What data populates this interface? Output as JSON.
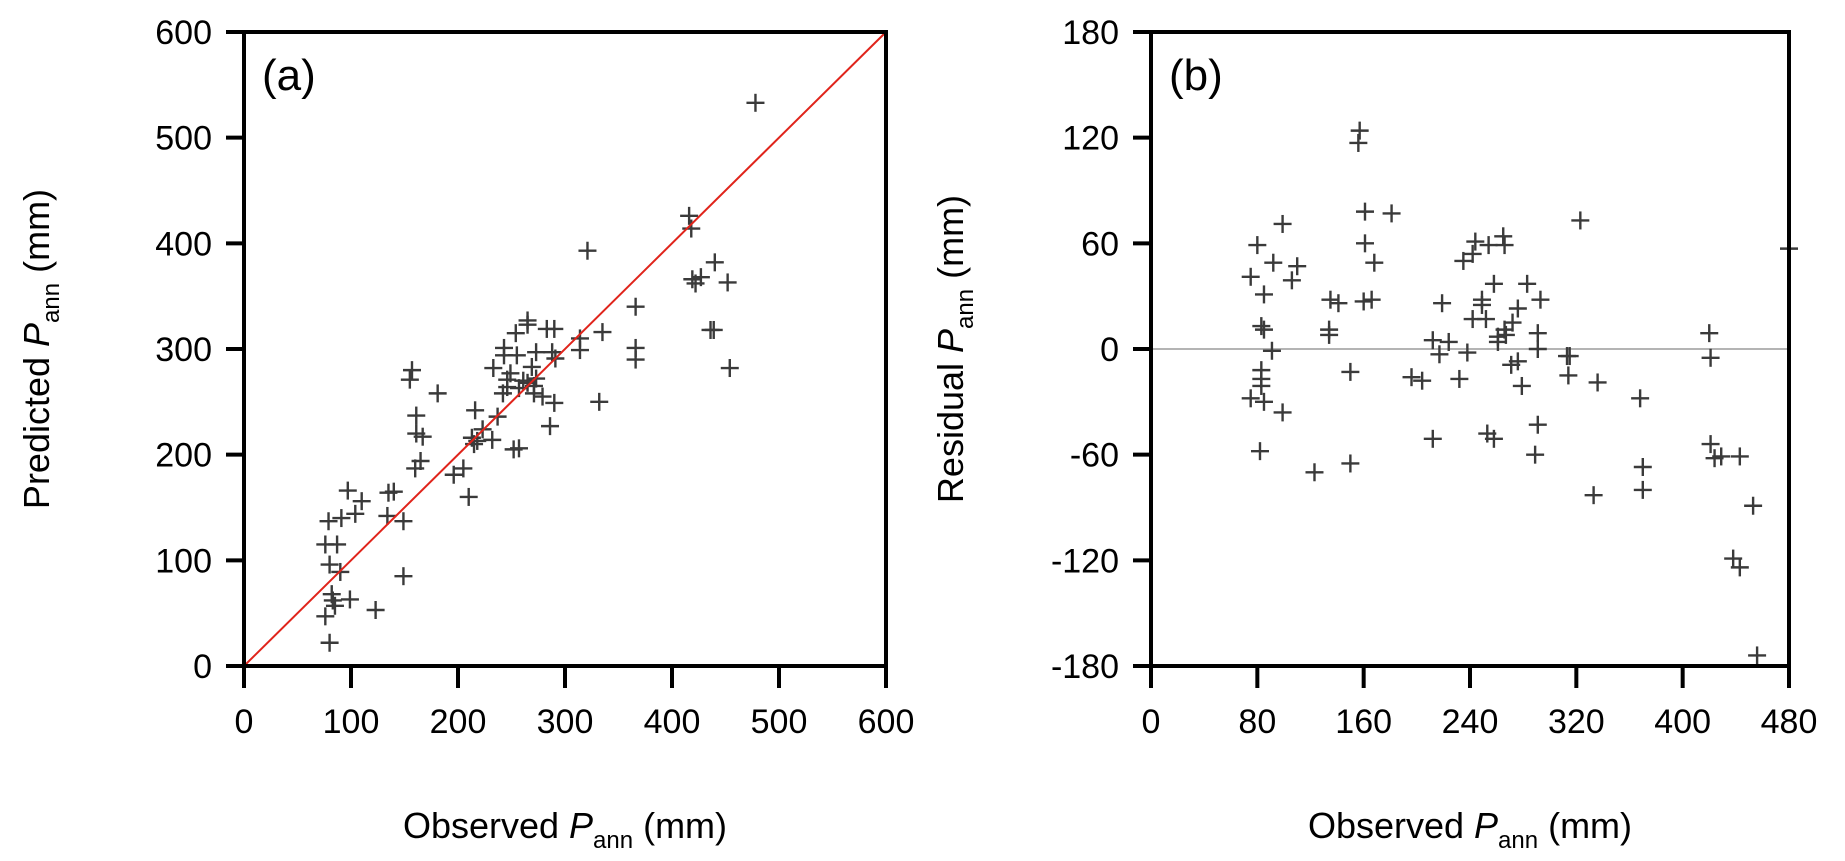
{
  "chart_data": [
    {
      "type": "scatter",
      "panel_label": "(a)",
      "title": "",
      "xlabel": {
        "prefix": "Observed ",
        "var": "P",
        "sub": "ann",
        "suffix": " (mm)"
      },
      "ylabel": {
        "prefix": "Predicted ",
        "var": "P",
        "sub": "ann",
        "suffix": " (mm)"
      },
      "xlim": [
        0,
        600
      ],
      "ylim": [
        0,
        600
      ],
      "xticks": [
        "0",
        "100",
        "200",
        "300",
        "400",
        "500",
        "600"
      ],
      "yticks": [
        "0",
        "100",
        "200",
        "300",
        "400",
        "500",
        "600"
      ],
      "xtick_values": [
        0,
        100,
        200,
        300,
        400,
        500,
        600
      ],
      "ytick_values": [
        0,
        100,
        200,
        300,
        400,
        500,
        600
      ],
      "grid": false,
      "marker": "+",
      "marker_color": "#3a3a3a",
      "reference_line": {
        "type": "1:1",
        "from": [
          0,
          0
        ],
        "to": [
          600,
          600
        ],
        "color": "#e0241b"
      },
      "points": [
        [
          80,
          22
        ],
        [
          76,
          47
        ],
        [
          85,
          57
        ],
        [
          82,
          68
        ],
        [
          83,
          62
        ],
        [
          99,
          63
        ],
        [
          123,
          53
        ],
        [
          149,
          85
        ],
        [
          80,
          96
        ],
        [
          90,
          89
        ],
        [
          76,
          115
        ],
        [
          87,
          115
        ],
        [
          79,
          137
        ],
        [
          91,
          140
        ],
        [
          104,
          144
        ],
        [
          110,
          156
        ],
        [
          97,
          166
        ],
        [
          134,
          142
        ],
        [
          149,
          137
        ],
        [
          135,
          164
        ],
        [
          140,
          165
        ],
        [
          165,
          194
        ],
        [
          160,
          187
        ],
        [
          196,
          181
        ],
        [
          205,
          187
        ],
        [
          210,
          160
        ],
        [
          215,
          210
        ],
        [
          157,
          280
        ],
        [
          155,
          271
        ],
        [
          181,
          258
        ],
        [
          161,
          237
        ],
        [
          161,
          220
        ],
        [
          167,
          217
        ],
        [
          216,
          242
        ],
        [
          237,
          236
        ],
        [
          223,
          224
        ],
        [
          213,
          216
        ],
        [
          218,
          213
        ],
        [
          232,
          214
        ],
        [
          252,
          205
        ],
        [
          257,
          206
        ],
        [
          233,
          282
        ],
        [
          243,
          301
        ],
        [
          243,
          294
        ],
        [
          255,
          294
        ],
        [
          254,
          315
        ],
        [
          265,
          327
        ],
        [
          265,
          323
        ],
        [
          283,
          319
        ],
        [
          290,
          319
        ],
        [
          273,
          297
        ],
        [
          288,
          297
        ],
        [
          291,
          291
        ],
        [
          249,
          277
        ],
        [
          246,
          271
        ],
        [
          269,
          283
        ],
        [
          261,
          270
        ],
        [
          265,
          268
        ],
        [
          271,
          265
        ],
        [
          273,
          272
        ],
        [
          246,
          264
        ],
        [
          242,
          258
        ],
        [
          257,
          263
        ],
        [
          271,
          258
        ],
        [
          279,
          255
        ],
        [
          290,
          249
        ],
        [
          286,
          227
        ],
        [
          314,
          310
        ],
        [
          314,
          299
        ],
        [
          335,
          316
        ],
        [
          332,
          250
        ],
        [
          366,
          340
        ],
        [
          366,
          301
        ],
        [
          366,
          290
        ],
        [
          321,
          393
        ],
        [
          416,
          426
        ],
        [
          418,
          414
        ],
        [
          440,
          382
        ],
        [
          419,
          366
        ],
        [
          427,
          368
        ],
        [
          422,
          362
        ],
        [
          452,
          363
        ],
        [
          436,
          318
        ],
        [
          439,
          318
        ],
        [
          454,
          282
        ],
        [
          478,
          533
        ]
      ]
    },
    {
      "type": "scatter",
      "panel_label": "(b)",
      "title": "",
      "xlabel": {
        "prefix": "Observed ",
        "var": "P",
        "sub": "ann",
        "suffix": " (mm)"
      },
      "ylabel": {
        "prefix": "Residual ",
        "var": "P",
        "sub": "ann",
        "suffix": " (mm)"
      },
      "xlim": [
        0,
        480
      ],
      "ylim": [
        -180,
        180
      ],
      "xticks": [
        "0",
        "80",
        "160",
        "240",
        "320",
        "400",
        "480"
      ],
      "yticks": [
        "-180",
        "-120",
        "-60",
        "0",
        "60",
        "120",
        "180"
      ],
      "xtick_values": [
        0,
        80,
        160,
        240,
        320,
        400,
        480
      ],
      "ytick_values": [
        -180,
        -120,
        -60,
        0,
        60,
        120,
        180
      ],
      "grid": false,
      "marker": "+",
      "marker_color": "#3a3a3a",
      "reference_line": {
        "type": "horizontal",
        "y": 0,
        "color": "#b4b4b4"
      },
      "points": [
        [
          157,
          124
        ],
        [
          156,
          117
        ],
        [
          161,
          78
        ],
        [
          181,
          77
        ],
        [
          161,
          60
        ],
        [
          168,
          49
        ],
        [
          135,
          28
        ],
        [
          141,
          26
        ],
        [
          160,
          27
        ],
        [
          166,
          28
        ],
        [
          99,
          71
        ],
        [
          80,
          59
        ],
        [
          92,
          49
        ],
        [
          110,
          47
        ],
        [
          75,
          41
        ],
        [
          106,
          39
        ],
        [
          85,
          31
        ],
        [
          83,
          13
        ],
        [
          85,
          11
        ],
        [
          134,
          11
        ],
        [
          134,
          8
        ],
        [
          91,
          -1
        ],
        [
          83,
          -12
        ],
        [
          83,
          -17
        ],
        [
          83,
          -21
        ],
        [
          75,
          -28
        ],
        [
          85,
          -30
        ],
        [
          99,
          -36
        ],
        [
          150,
          -13
        ],
        [
          82,
          -58
        ],
        [
          150,
          -65
        ],
        [
          123,
          -70
        ],
        [
          323,
          73
        ],
        [
          244,
          61
        ],
        [
          254,
          59
        ],
        [
          265,
          64
        ],
        [
          266,
          59
        ],
        [
          242,
          54
        ],
        [
          235,
          50
        ],
        [
          258,
          37
        ],
        [
          283,
          37
        ],
        [
          293,
          28
        ],
        [
          249,
          28
        ],
        [
          249,
          25
        ],
        [
          219,
          26
        ],
        [
          276,
          23
        ],
        [
          242,
          17
        ],
        [
          252,
          17
        ],
        [
          272,
          15
        ],
        [
          266,
          11
        ],
        [
          267,
          8
        ],
        [
          261,
          7
        ],
        [
          261,
          4
        ],
        [
          291,
          9
        ],
        [
          291,
          0
        ],
        [
          212,
          5
        ],
        [
          224,
          4
        ],
        [
          238,
          -2
        ],
        [
          217,
          -3
        ],
        [
          313,
          -4
        ],
        [
          315,
          -4
        ],
        [
          276,
          -7
        ],
        [
          271,
          -9
        ],
        [
          196,
          -16
        ],
        [
          204,
          -18
        ],
        [
          232,
          -17
        ],
        [
          279,
          -21
        ],
        [
          314,
          -15
        ],
        [
          336,
          -19
        ],
        [
          291,
          -43
        ],
        [
          212,
          -51
        ],
        [
          253,
          -48
        ],
        [
          258,
          -51
        ],
        [
          289,
          -60
        ],
        [
          333,
          -83
        ],
        [
          480,
          57
        ],
        [
          420,
          9
        ],
        [
          421,
          -5
        ],
        [
          368,
          -28
        ],
        [
          421,
          -54
        ],
        [
          424,
          -62
        ],
        [
          429,
          -61
        ],
        [
          443,
          -61
        ],
        [
          370,
          -67
        ],
        [
          370,
          -80
        ],
        [
          453,
          -89
        ],
        [
          438,
          -119
        ],
        [
          443,
          -124
        ],
        [
          456,
          -174
        ]
      ]
    }
  ]
}
